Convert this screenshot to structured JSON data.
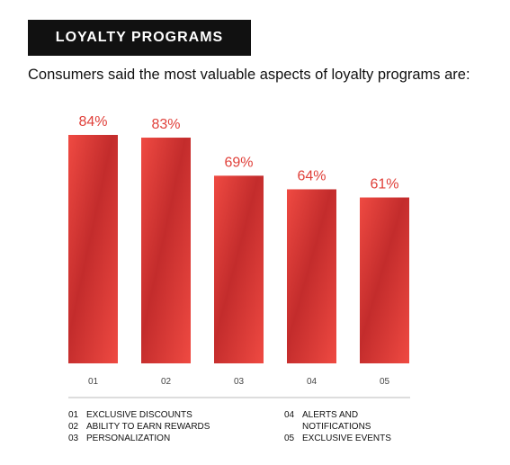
{
  "header": {
    "badge": "LOYALTY PROGRAMS",
    "subtitle": "Consumers said the most valuable aspects of loyalty programs are:"
  },
  "colors": {
    "bar_dark": "#c32c2c",
    "bar_light": "#ef4a42",
    "value_label": "#e0403a",
    "axis": "#bbbbbb",
    "badge_bg": "#111111"
  },
  "chart_data": {
    "type": "bar",
    "categories": [
      "01",
      "02",
      "03",
      "04",
      "05"
    ],
    "values": [
      84,
      83,
      69,
      64,
      61
    ],
    "value_labels": [
      "84%",
      "83%",
      "69%",
      "64%",
      "61%"
    ],
    "title": "",
    "xlabel": "",
    "ylabel": "",
    "ylim": [
      0,
      100
    ],
    "grid": false
  },
  "legend": {
    "left": [
      {
        "num": "01",
        "label": "EXCLUSIVE DISCOUNTS"
      },
      {
        "num": "02",
        "label": "ABILITY TO EARN REWARDS"
      },
      {
        "num": "03",
        "label": "PERSONALIZATION"
      }
    ],
    "right": [
      {
        "num": "04",
        "label": "ALERTS AND NOTIFICATIONS"
      },
      {
        "num": "05",
        "label": "EXCLUSIVE EVENTS"
      }
    ]
  }
}
